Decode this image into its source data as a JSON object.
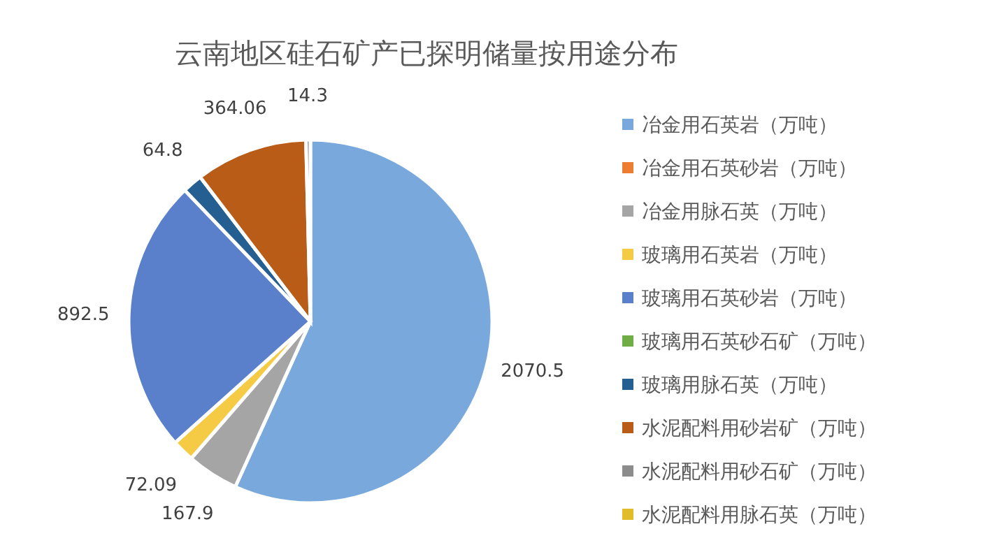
{
  "chart_data": {
    "type": "pie",
    "title": "云南地区硅石矿产已探明储量按用途分布",
    "categories": [
      "冶金用石英岩（万吨）",
      "冶金用石英砂岩（万吨）",
      "冶金用脉石英（万吨）",
      "玻璃用石英岩（万吨）",
      "玻璃用石英砂岩（万吨）",
      "玻璃用石英砂石矿（万吨）",
      "玻璃用脉石英（万吨）",
      "水泥配料用砂岩矿（万吨）",
      "水泥配料用砂石矿（万吨）",
      "水泥配料用脉石英（万吨）"
    ],
    "values": [
      2070.5,
      0,
      167.9,
      72.09,
      892.5,
      null,
      64.8,
      364.06,
      14.3,
      0
    ],
    "value_labels": [
      "2070.5",
      null,
      "167.9",
      "72.09",
      "892.5",
      null,
      "64.8",
      "364.06",
      "14.3",
      null
    ],
    "colors": [
      "#79a9dc",
      "#ed7d31",
      "#a5a5a5",
      "#f5cb45",
      "#5a80cc",
      "#70ad47",
      "#255e91",
      "#b85c18",
      "#8c8c8c",
      "#e0bc2a"
    ],
    "legend": "right"
  }
}
